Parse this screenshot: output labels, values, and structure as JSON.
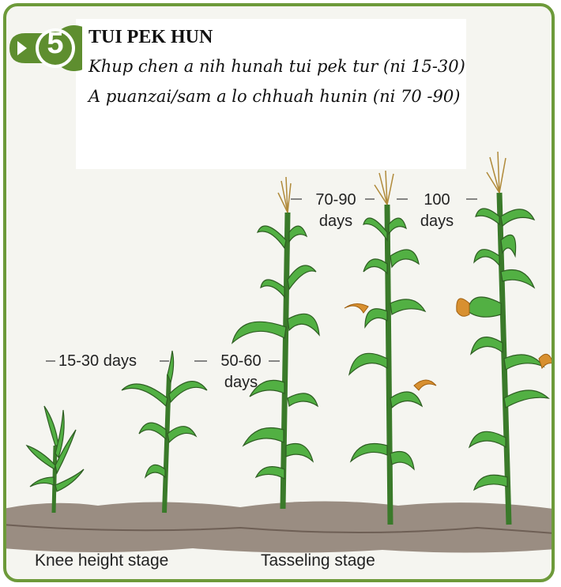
{
  "header": {
    "step_number": "5",
    "title": "TUI PEK HUN",
    "line1": "Khup chen a nih hunah tui pek tur (ni 15-30)",
    "line2": "A puanzai/sam a lo chhuah hunin (ni 70 -90)"
  },
  "labels": {
    "d15_30": "15-30 days",
    "d50_60_a": "50-60",
    "d50_60_b": "days",
    "d70_90_a": "70-90",
    "d70_90_b": "days",
    "d100_a": "100",
    "d100_b": "days"
  },
  "stages": {
    "knee": "Knee height stage",
    "tasseling": "Tasseling stage"
  },
  "colors": {
    "frame": "#6d9a3a",
    "badge": "#5e8e2f",
    "leaf": "#4caf3c",
    "soil": "#8a7a6e",
    "tassel": "#c9a24a"
  }
}
